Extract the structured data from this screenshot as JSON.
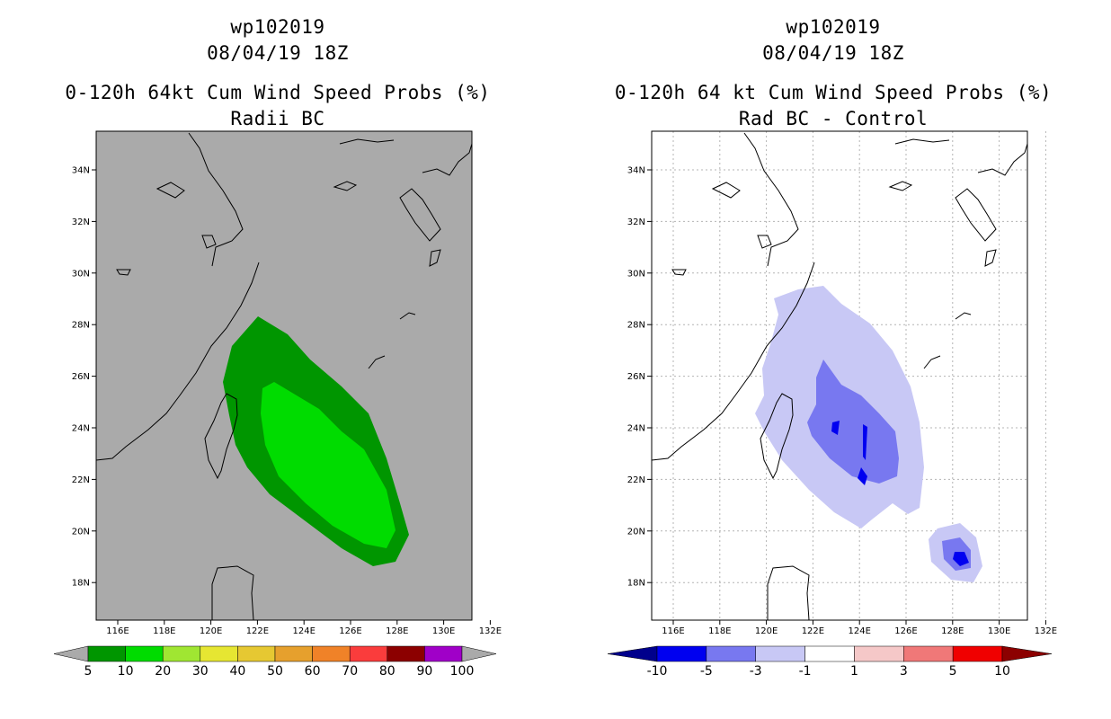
{
  "left": {
    "title": "wp102019",
    "datetime": "08/04/19 18Z",
    "subtitle": "0-120h 64kt Cum Wind Speed Probs (%)",
    "subtitle2": "Radii BC",
    "background": "#aaaaaa",
    "colorbar": {
      "colors": [
        "#009600",
        "#00c800",
        "#00dc00",
        "#a0e632",
        "#e6dc32",
        "#e6af2d",
        "#f08228",
        "#fa3c3c",
        "#c80000",
        "#8c0000",
        "#a000c8"
      ],
      "labels": [
        "5",
        "10",
        "20",
        "30",
        "40",
        "50",
        "60",
        "70",
        "80",
        "90",
        "100"
      ]
    }
  },
  "right": {
    "title": "wp102019",
    "datetime": "08/04/19 18Z",
    "subtitle": "0-120h 64 kt Cum Wind Speed Probs (%)",
    "subtitle2": "Rad BC - Control",
    "background": "#ffffff",
    "colorbar": {
      "colors": [
        "#00008c",
        "#0000f0",
        "#7878f0",
        "#c8c8f5",
        "#ffffff",
        "#f5c8c8",
        "#f07878",
        "#f00000",
        "#8c0000"
      ],
      "labels": [
        "-10",
        "-5",
        "-3",
        "-1",
        "1",
        "3",
        "5",
        "10"
      ]
    }
  },
  "axes": {
    "lat_ticks": [
      "34N",
      "32N",
      "30N",
      "28N",
      "26N",
      "24N",
      "22N",
      "20N",
      "18N"
    ],
    "lon_ticks": [
      "116E",
      "118E",
      "120E",
      "122E",
      "124E",
      "126E",
      "128E",
      "130E",
      "132E"
    ]
  }
}
